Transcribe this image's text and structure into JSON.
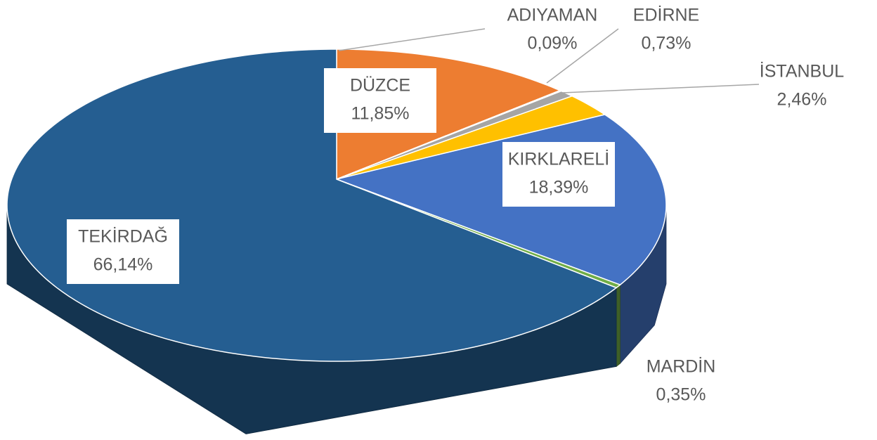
{
  "chart_data": {
    "type": "pie",
    "categories": [
      "DÜZCE",
      "ADIYAMAN",
      "EDİRNE",
      "İSTANBUL",
      "KIRKLARELİ",
      "MARDİN",
      "TEKİRDAĞ"
    ],
    "values": [
      11.85,
      0.09,
      0.73,
      2.46,
      18.39,
      0.35,
      66.14
    ],
    "value_labels": [
      "11,85%",
      "0,09%",
      "0,73%",
      "2,46%",
      "18,39%",
      "0,35%",
      "66,14%"
    ],
    "colors": [
      "#ed7d31",
      "#7f7f7f",
      "#a5a5a5",
      "#ffc000",
      "#4472c4",
      "#70ad47",
      "#255e91"
    ]
  }
}
